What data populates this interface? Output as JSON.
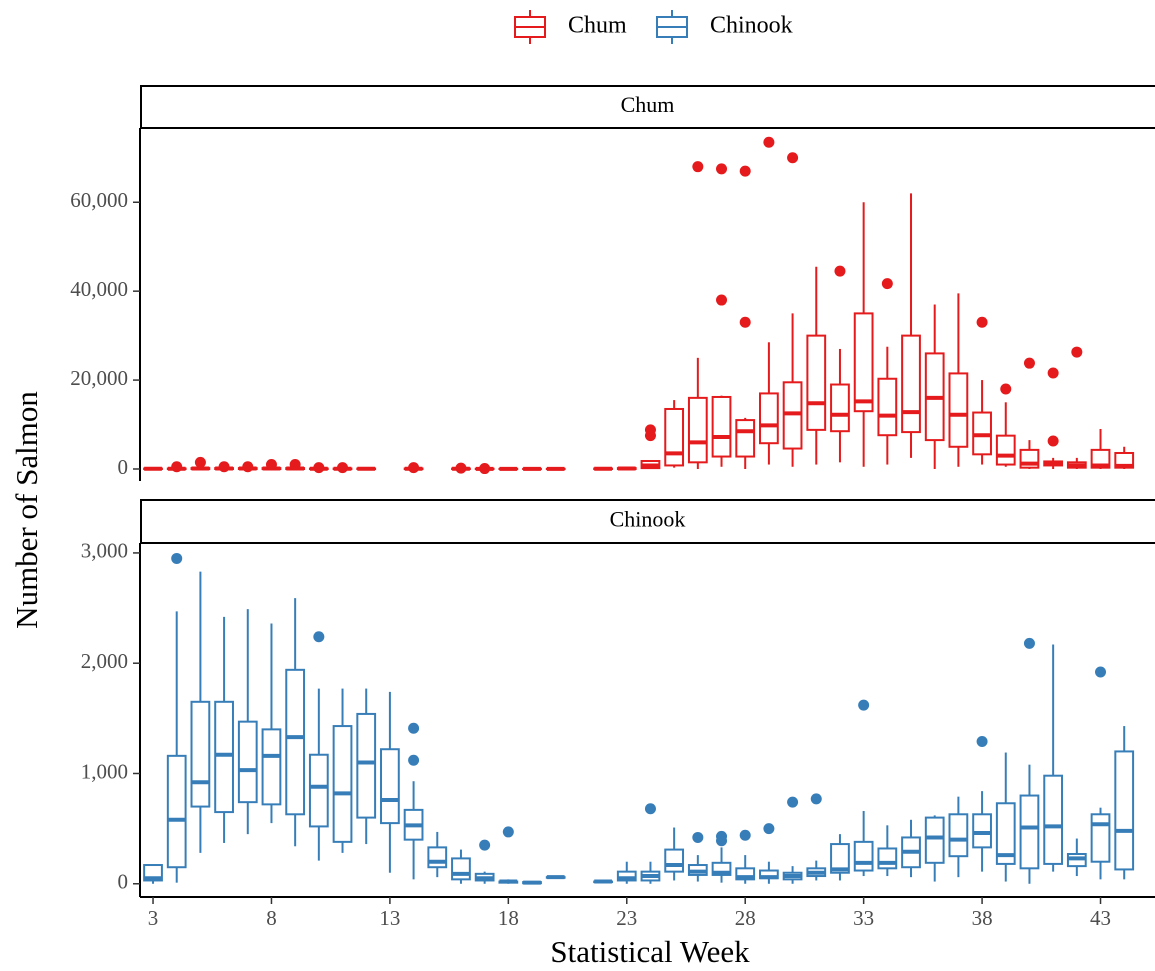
{
  "chart_data": [
    {
      "type": "box",
      "title": "Chum",
      "ylabel": "Number of Salmon",
      "xlim": [
        2.45,
        45.3
      ],
      "ylim": [
        -2700,
        76700
      ],
      "yticks": [
        0,
        {
          "value": 20000,
          "label": "20,000"
        },
        {
          "value": 40000,
          "label": "40,000"
        },
        {
          "value": 60000,
          "label": "60,000"
        }
      ],
      "series": [
        {
          "name": "Chum",
          "color": "#e41a1c",
          "x": [
            3,
            4,
            5,
            6,
            7,
            8,
            9,
            10,
            11,
            12,
            14,
            16,
            17,
            18,
            19,
            20,
            22,
            23,
            24,
            25,
            26,
            27,
            28,
            29,
            30,
            31,
            32,
            33,
            34,
            35,
            36,
            37,
            38,
            39,
            40,
            41,
            42,
            43,
            44
          ],
          "min": [
            0,
            0,
            0,
            0,
            0,
            0,
            0,
            0,
            0,
            0,
            0,
            0,
            0,
            0,
            0,
            0,
            0,
            0,
            0,
            300,
            0,
            500,
            0,
            1000,
            500,
            1000,
            1500,
            500,
            1000,
            2500,
            0,
            500,
            1000,
            500,
            0,
            0,
            0,
            0,
            0
          ],
          "q1": [
            0,
            0,
            0,
            0,
            0,
            0,
            0,
            0,
            0,
            0,
            0,
            0,
            0,
            0,
            0,
            0,
            0,
            0,
            200,
            800,
            1500,
            2800,
            2800,
            5800,
            4600,
            8800,
            8500,
            13000,
            7600,
            8300,
            6500,
            5000,
            3300,
            1000,
            300,
            800,
            300,
            300,
            300
          ],
          "median": [
            50,
            50,
            100,
            100,
            100,
            100,
            100,
            50,
            50,
            50,
            50,
            50,
            30,
            20,
            20,
            20,
            50,
            100,
            800,
            3500,
            6000,
            7200,
            8500,
            9800,
            12500,
            14800,
            12200,
            15200,
            12000,
            12800,
            16000,
            12200,
            7600,
            3000,
            1200,
            1200,
            800,
            800,
            700
          ],
          "q3": [
            100,
            100,
            200,
            200,
            200,
            200,
            200,
            100,
            100,
            100,
            100,
            100,
            50,
            30,
            30,
            30,
            100,
            200,
            1800,
            13500,
            16000,
            16200,
            11000,
            17000,
            19500,
            30000,
            19000,
            35000,
            20300,
            30000,
            26000,
            21500,
            12700,
            7500,
            4300,
            1700,
            1500,
            4300,
            3600
          ],
          "max": [
            200,
            200,
            400,
            300,
            300,
            400,
            400,
            200,
            200,
            200,
            200,
            200,
            100,
            50,
            50,
            50,
            200,
            400,
            2000,
            15500,
            25000,
            16500,
            11500,
            28500,
            35000,
            45500,
            27000,
            60000,
            27500,
            62000,
            37000,
            39500,
            20000,
            15000,
            6500,
            2500,
            2500,
            9000,
            5000
          ],
          "outliers": [
            [],
            [
              500
            ],
            [
              1500
            ],
            [
              500
            ],
            [
              500
            ],
            [
              1000
            ],
            [
              1000
            ],
            [
              300
            ],
            [
              300
            ],
            [],
            [
              300
            ],
            [
              200
            ],
            [
              100
            ],
            [],
            [],
            [],
            [],
            [],
            [
              7500,
              8800
            ],
            [],
            [
              68000
            ],
            [
              38000,
              67500
            ],
            [
              33000,
              67000
            ],
            [
              73500
            ],
            [
              70000
            ],
            [],
            [
              44500
            ],
            [],
            [
              41700
            ],
            [],
            [],
            [],
            [
              33000
            ],
            [
              18000
            ],
            [
              23800
            ],
            [
              6300,
              21600
            ],
            [
              26300
            ],
            [],
            []
          ]
        }
      ]
    },
    {
      "type": "box",
      "title": "Chinook",
      "xlabel": "Statistical Week",
      "xlim": [
        2.45,
        45.3
      ],
      "ylim": [
        -120,
        3090
      ],
      "xticks": [
        3,
        8,
        13,
        18,
        23,
        28,
        33,
        38,
        43
      ],
      "yticks": [
        0,
        {
          "value": 1000,
          "label": "1,000"
        },
        {
          "value": 2000,
          "label": "2,000"
        },
        {
          "value": 3000,
          "label": "3,000"
        }
      ],
      "series": [
        {
          "name": "Chinook",
          "color": "#377eb8",
          "x": [
            3,
            4,
            5,
            6,
            7,
            8,
            9,
            10,
            11,
            12,
            13,
            14,
            15,
            16,
            17,
            18,
            19,
            20,
            22,
            23,
            24,
            25,
            26,
            27,
            28,
            29,
            30,
            31,
            32,
            33,
            34,
            35,
            36,
            37,
            38,
            39,
            40,
            41,
            42,
            43,
            44
          ],
          "min": [
            0,
            10,
            280,
            370,
            450,
            550,
            340,
            210,
            280,
            360,
            100,
            40,
            60,
            0,
            0,
            0,
            0,
            50,
            10,
            0,
            0,
            30,
            20,
            10,
            0,
            0,
            0,
            30,
            30,
            70,
            70,
            60,
            20,
            60,
            110,
            20,
            0,
            110,
            70,
            40,
            40
          ],
          "q1": [
            30,
            150,
            700,
            650,
            740,
            720,
            630,
            520,
            380,
            600,
            550,
            400,
            150,
            40,
            30,
            10,
            5,
            55,
            15,
            30,
            30,
            110,
            80,
            80,
            40,
            50,
            40,
            70,
            100,
            120,
            140,
            150,
            190,
            250,
            330,
            180,
            140,
            180,
            160,
            200,
            130
          ],
          "median": [
            50,
            580,
            920,
            1170,
            1030,
            1160,
            1330,
            880,
            820,
            1100,
            760,
            530,
            200,
            90,
            50,
            20,
            10,
            60,
            20,
            50,
            70,
            170,
            110,
            100,
            60,
            60,
            70,
            100,
            130,
            190,
            190,
            290,
            420,
            400,
            460,
            260,
            510,
            520,
            230,
            540,
            480
          ],
          "q3": [
            170,
            1160,
            1650,
            1650,
            1470,
            1400,
            1940,
            1170,
            1430,
            1540,
            1220,
            670,
            330,
            230,
            90,
            20,
            15,
            60,
            20,
            110,
            110,
            310,
            170,
            190,
            140,
            120,
            100,
            140,
            360,
            380,
            320,
            420,
            600,
            630,
            630,
            730,
            800,
            980,
            270,
            630,
            1200
          ],
          "max": [
            170,
            2470,
            2830,
            2420,
            2490,
            2360,
            2590,
            1770,
            1770,
            1770,
            1740,
            930,
            470,
            310,
            110,
            40,
            20,
            65,
            25,
            200,
            200,
            510,
            260,
            330,
            260,
            200,
            160,
            210,
            450,
            660,
            530,
            580,
            620,
            790,
            840,
            1190,
            1080,
            2170,
            410,
            690,
            1430
          ],
          "outliers": [
            [],
            [
              2950
            ],
            [],
            [],
            [],
            [],
            [],
            [
              2240
            ],
            [],
            [],
            [],
            [
              1120,
              1410
            ],
            [],
            [],
            [
              350
            ],
            [
              470
            ],
            [],
            [],
            [],
            [],
            [
              680
            ],
            [],
            [
              420
            ],
            [
              390,
              430
            ],
            [
              440
            ],
            [
              500
            ],
            [
              740
            ],
            [
              770
            ],
            [],
            [
              1620
            ],
            [],
            [],
            [],
            [],
            [
              1290
            ],
            [],
            [
              2180
            ],
            [],
            [],
            [
              1920
            ],
            []
          ]
        }
      ]
    }
  ]
}
